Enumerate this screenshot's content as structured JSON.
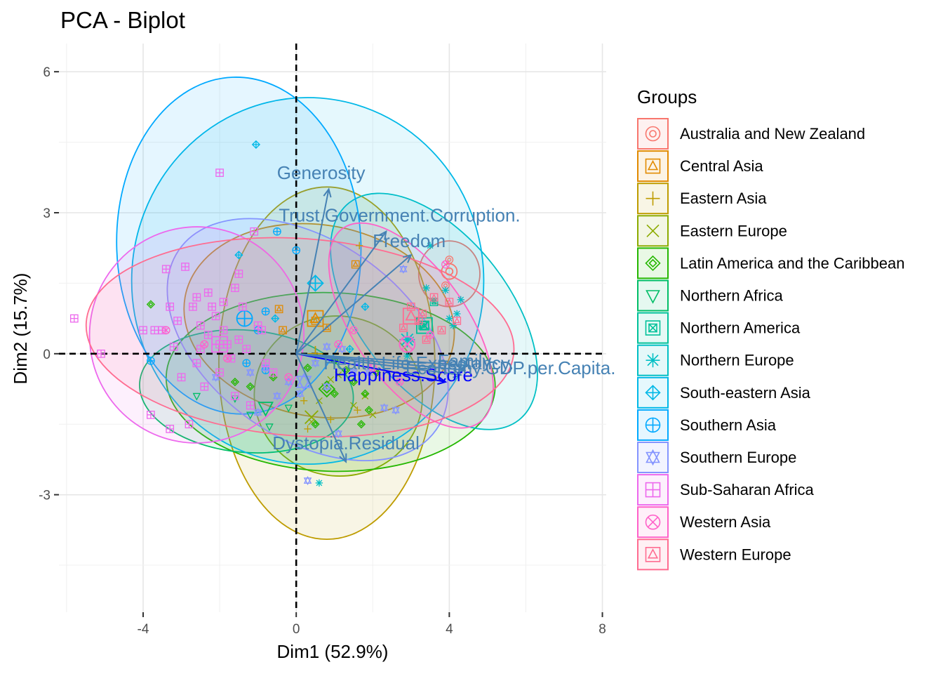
{
  "chart_data": {
    "type": "scatter",
    "subtype": "pca-biplot",
    "title": "PCA - Biplot",
    "xlabel": "Dim1 (52.9%)",
    "ylabel": "Dim2 (15.7%)",
    "xlim": [
      -6.2,
      8.1
    ],
    "ylim": [
      -5.5,
      6.6
    ],
    "x_ticks": [
      -4,
      0,
      4,
      8
    ],
    "y_ticks": [
      -3,
      0,
      3,
      6
    ],
    "x_tick_labels": [
      "-4",
      "0",
      "4",
      "8"
    ],
    "y_tick_labels": [
      "-3",
      "0",
      "3",
      "6"
    ],
    "grid": true,
    "reference_lines": {
      "x": 0,
      "y": 0,
      "style": "dashed"
    },
    "legend": {
      "title": "Groups",
      "position": "right"
    },
    "groups": [
      {
        "name": "Australia and New Zealand",
        "color": "#F8766D",
        "marker": "circle-ring",
        "centroid": [
          4.0,
          1.75
        ],
        "ellipse": {
          "cx": 4.0,
          "cy": 1.7,
          "rx": 0.8,
          "ry": 0.7,
          "angle": 0
        },
        "points": [
          [
            4.0,
            2.0
          ],
          [
            3.9,
            1.45
          ]
        ]
      },
      {
        "name": "Central Asia",
        "color": "#E18A00",
        "marker": "triangle-in-square",
        "centroid": [
          0.5,
          0.75
        ],
        "ellipse": {
          "cx": 0.6,
          "cy": 0.7,
          "rx": 2.5,
          "ry": 2.9,
          "angle": 80
        },
        "points": [
          [
            1.55,
            1.9
          ],
          [
            -0.45,
            0.95
          ],
          [
            -0.35,
            0.5
          ],
          [
            0.5,
            0.7
          ],
          [
            0.8,
            0.55
          ]
        ]
      },
      {
        "name": "Eastern Asia",
        "color": "#BE9C00",
        "marker": "plus",
        "centroid": [
          0.5,
          0.0
        ],
        "ellipse": {
          "cx": 0.8,
          "cy": -0.2,
          "rx": 4.6,
          "ry": 2.3,
          "angle": 90
        },
        "points": [
          [
            1.65,
            2.3
          ],
          [
            0.2,
            -1.0
          ],
          [
            0.9,
            -1.4
          ],
          [
            1.6,
            -1.2
          ],
          [
            0.3,
            -1.6
          ]
        ]
      },
      {
        "name": "Eastern Europe",
        "color": "#8CAB00",
        "marker": "cross",
        "centroid": [
          0.4,
          -1.35
        ],
        "ellipse": {
          "cx": 1.1,
          "cy": -0.9,
          "rx": 2.2,
          "ry": 1.7,
          "angle": 170
        },
        "points": [
          [
            1.1,
            -0.45
          ],
          [
            1.8,
            -0.9
          ],
          [
            0.75,
            -0.7
          ],
          [
            0.6,
            -1.0
          ],
          [
            1.5,
            -1.1
          ],
          [
            0.9,
            -0.55
          ],
          [
            2.0,
            -1.3
          ],
          [
            0.4,
            -1.45
          ]
        ]
      },
      {
        "name": "Latin America and the Caribbean",
        "color": "#24B700",
        "marker": "diamond",
        "centroid": [
          0.8,
          -0.75
        ],
        "ellipse": {
          "cx": 0.9,
          "cy": -0.6,
          "rx": 4.3,
          "ry": 1.9,
          "angle": 178
        },
        "points": [
          [
            1.0,
            -0.15
          ],
          [
            1.5,
            -0.6
          ],
          [
            1.8,
            -0.85
          ],
          [
            -0.6,
            -0.5
          ],
          [
            -1.2,
            -0.7
          ],
          [
            0.5,
            -1.5
          ],
          [
            1.0,
            -0.85
          ],
          [
            1.7,
            -1.5
          ],
          [
            1.9,
            -1.2
          ],
          [
            2.1,
            -0.4
          ],
          [
            0.3,
            -0.3
          ],
          [
            -1.6,
            -0.6
          ],
          [
            1.3,
            -0.35
          ],
          [
            -3.8,
            1.05
          ]
        ]
      },
      {
        "name": "Northern Africa",
        "color": "#00BE67",
        "marker": "triangle-down",
        "centroid": [
          -0.8,
          -1.15
        ],
        "ellipse": {
          "cx": -1.3,
          "cy": -0.8,
          "rx": 2.8,
          "ry": 1.3,
          "angle": 175
        },
        "points": [
          [
            -1.2,
            -1.3
          ],
          [
            -0.7,
            -1.55
          ],
          [
            -2.6,
            -0.9
          ],
          [
            -0.2,
            -1.15
          ],
          [
            -1.6,
            -0.95
          ]
        ]
      },
      {
        "name": "Northern America",
        "color": "#00C19A",
        "marker": "x-in-square",
        "centroid": [
          3.35,
          0.6
        ],
        "ellipse": null,
        "points": [
          [
            3.3,
            0.6
          ],
          [
            3.6,
            1.1
          ]
        ]
      },
      {
        "name": "Northern Europe",
        "color": "#00BFC4",
        "marker": "asterisk",
        "centroid": [
          2.9,
          0.3
        ],
        "ellipse": {
          "cx": 3.6,
          "cy": 0.9,
          "rx": 3.6,
          "ry": 1.6,
          "angle": -52
        },
        "points": [
          [
            3.4,
            1.4
          ],
          [
            3.9,
            1.35
          ],
          [
            4.1,
            0.6
          ],
          [
            4.3,
            1.15
          ],
          [
            4.2,
            0.85
          ],
          [
            3.0,
            0.3
          ],
          [
            2.9,
            -0.05
          ],
          [
            0.6,
            -2.75
          ],
          [
            4.0,
            0.75
          ],
          [
            3.5,
            2.3
          ]
        ]
      },
      {
        "name": "South-eastern Asia",
        "color": "#00B8E7",
        "marker": "diamond-plus",
        "centroid": [
          0.5,
          1.5
        ],
        "ellipse": {
          "cx": 0.3,
          "cy": 1.55,
          "rx": 4.6,
          "ry": 3.9,
          "angle": 0
        },
        "points": [
          [
            -1.05,
            4.45
          ],
          [
            -1.5,
            2.1
          ],
          [
            1.8,
            1.0
          ],
          [
            1.4,
            0.1
          ],
          [
            -0.55,
            0.75
          ]
        ]
      },
      {
        "name": "Southern Asia",
        "color": "#00A9FF",
        "marker": "circle-plus",
        "centroid": [
          -1.35,
          0.75
        ],
        "ellipse": {
          "cx": -1.5,
          "cy": 2.3,
          "rx": 4.4,
          "ry": 2.6,
          "angle": 92
        },
        "points": [
          [
            -0.5,
            2.6
          ],
          [
            0.0,
            2.2
          ],
          [
            -0.8,
            0.9
          ],
          [
            -3.8,
            -0.15
          ],
          [
            -1.3,
            -0.2
          ],
          [
            -1.0,
            0.5
          ],
          [
            -0.8,
            -0.35
          ]
        ]
      },
      {
        "name": "Southern Europe",
        "color": "#8494FF",
        "marker": "star-of-david",
        "centroid": [
          0.2,
          -0.6
        ],
        "ellipse": {
          "cx": 0.3,
          "cy": 0.3,
          "rx": 4.1,
          "ry": 2.1,
          "angle": 145
        },
        "points": [
          [
            1.2,
            0.1
          ],
          [
            1.5,
            -0.4
          ],
          [
            0.8,
            -0.7
          ],
          [
            -0.8,
            -0.3
          ],
          [
            -1.2,
            -0.4
          ],
          [
            -0.5,
            -0.9
          ],
          [
            2.6,
            -1.2
          ],
          [
            2.8,
            1.8
          ],
          [
            1.1,
            -1.7
          ],
          [
            0.3,
            -2.7
          ],
          [
            1.9,
            -0.4
          ],
          [
            0.1,
            -0.85
          ],
          [
            2.3,
            -1.15
          ],
          [
            -0.2,
            -0.6
          ],
          [
            1.6,
            -0.15
          ],
          [
            0.5,
            -0.2
          ],
          [
            -2.1,
            -0.5
          ],
          [
            -1.0,
            -1.25
          ],
          [
            0.8,
            0.15
          ]
        ]
      },
      {
        "name": "Sub-Saharan Africa",
        "color": "#ED68ED",
        "marker": "square-plus",
        "centroid": [
          -2.0,
          0.2
        ],
        "ellipse": {
          "cx": -2.6,
          "cy": 0.4,
          "rx": 2.8,
          "ry": 2.3,
          "angle": 170
        },
        "points": [
          [
            -5.8,
            0.75
          ],
          [
            -5.1,
            0.0
          ],
          [
            -3.7,
            0.5
          ],
          [
            -3.5,
            0.5
          ],
          [
            -3.3,
            1.0
          ],
          [
            -3.2,
            0.15
          ],
          [
            -2.9,
            1.85
          ],
          [
            -2.7,
            1.0
          ],
          [
            -2.5,
            0.6
          ],
          [
            -2.3,
            0.4
          ],
          [
            -2.1,
            0.8
          ],
          [
            -2.0,
            0.2
          ],
          [
            -1.9,
            1.1
          ],
          [
            -1.7,
            -0.1
          ],
          [
            -1.6,
            1.4
          ],
          [
            -1.5,
            0.3
          ],
          [
            -1.3,
            0.1
          ],
          [
            -3.4,
            1.8
          ],
          [
            -3.1,
            0.7
          ],
          [
            -2.6,
            1.2
          ],
          [
            -2.2,
            1.0
          ],
          [
            -1.8,
            0.2
          ],
          [
            -1.4,
            1.0
          ],
          [
            -1.0,
            0.6
          ],
          [
            -0.8,
            -0.2
          ],
          [
            -2.4,
            -0.7
          ],
          [
            -2.0,
            -0.4
          ],
          [
            -1.6,
            -0.9
          ],
          [
            -1.2,
            -1.1
          ],
          [
            -3.8,
            -1.3
          ],
          [
            -2.8,
            -1.5
          ],
          [
            -3.3,
            -1.6
          ],
          [
            -2.0,
            3.85
          ],
          [
            -1.5,
            1.7
          ],
          [
            -1.1,
            2.6
          ],
          [
            -0.9,
            0.5
          ],
          [
            -0.6,
            -0.4
          ],
          [
            -4.0,
            0.5
          ],
          [
            -3.0,
            -0.5
          ],
          [
            -2.5,
            0.1
          ],
          [
            -1.9,
            0.5
          ],
          [
            -2.3,
            1.3
          ],
          [
            -2.6,
            -0.2
          ]
        ]
      },
      {
        "name": "Western Asia",
        "color": "#FF61C9",
        "marker": "circle-x",
        "centroid": [
          2.9,
          0.2
        ],
        "ellipse": {
          "cx": 3.0,
          "cy": 0.6,
          "rx": 3.1,
          "ry": 1.2,
          "angle": -55
        },
        "points": [
          [
            3.9,
            1.9
          ],
          [
            -0.2,
            -0.5
          ],
          [
            3.5,
            0.4
          ],
          [
            2.0,
            -0.3
          ],
          [
            -1.8,
            -0.1
          ],
          [
            2.7,
            -0.6
          ],
          [
            1.5,
            0.5
          ],
          [
            -3.4,
            0.5
          ],
          [
            -2.4,
            0.2
          ],
          [
            1.1,
            0.2
          ]
        ]
      },
      {
        "name": "Western Europe",
        "color": "#FF6C91",
        "marker": "triangle-in-square",
        "centroid": [
          3.0,
          0.8
        ],
        "ellipse": {
          "cx": 0.1,
          "cy": 0.35,
          "rx": 5.6,
          "ry": 2.1,
          "angle": 176
        },
        "points": [
          [
            3.3,
            0.85
          ],
          [
            4.0,
            1.1
          ],
          [
            3.2,
            0.7
          ],
          [
            3.8,
            0.5
          ],
          [
            4.2,
            0.7
          ],
          [
            3.6,
            1.2
          ],
          [
            3.4,
            0.3
          ],
          [
            2.8,
            0.55
          ],
          [
            3.0,
            1.0
          ]
        ]
      }
    ],
    "variables": [
      {
        "name": "Generosity",
        "x": 0.85,
        "y": 3.5,
        "color": "#4682B4"
      },
      {
        "name": "Trust.Government.Corruption.",
        "x": 2.35,
        "y": 2.6,
        "color": "#4682B4"
      },
      {
        "name": "Freedom",
        "x": 3.0,
        "y": 2.1,
        "color": "#4682B4"
      },
      {
        "name": "Dystopia.Residual",
        "x": 1.3,
        "y": -2.3,
        "color": "#4682B4"
      },
      {
        "name": "Happiness.Score",
        "x": 3.9,
        "y": -0.6,
        "color": "#0000FF"
      },
      {
        "name": "Family",
        "x": 4.3,
        "y": -0.45,
        "color": "#4682B4"
      },
      {
        "name": "Economy.GDP.per.Capita.",
        "x": 4.4,
        "y": -0.35,
        "color": "#4682B4"
      },
      {
        "name": "Health.Life.Expectancy.",
        "x": 4.5,
        "y": -0.25,
        "color": "#4682B4"
      }
    ],
    "variable_labels": [
      {
        "text": "Generosity",
        "x": 0.65,
        "y": 3.85,
        "color": "#4682B4"
      },
      {
        "text": "Trust.Government.Corruption.",
        "x": 2.7,
        "y": 2.95,
        "color": "#4682B4"
      },
      {
        "text": "Freedom",
        "x": 2.95,
        "y": 2.4,
        "color": "#4682B4"
      },
      {
        "text": "Dystopia.Residual",
        "x": 1.3,
        "y": -1.9,
        "color": "#4682B4"
      },
      {
        "text": "Happiness.Score",
        "x": 2.8,
        "y": -0.45,
        "color": "#0000FF"
      },
      {
        "text": "Health.Life.Expectancy.",
        "x": 3.2,
        "y": -0.2,
        "color": "#4682B4"
      },
      {
        "text": "Economy.GDP.per.Capita.",
        "x": 5.6,
        "y": -0.3,
        "color": "#4682B4"
      },
      {
        "text": "Family",
        "x": 4.4,
        "y": -0.15,
        "color": "#4682B4"
      }
    ]
  }
}
